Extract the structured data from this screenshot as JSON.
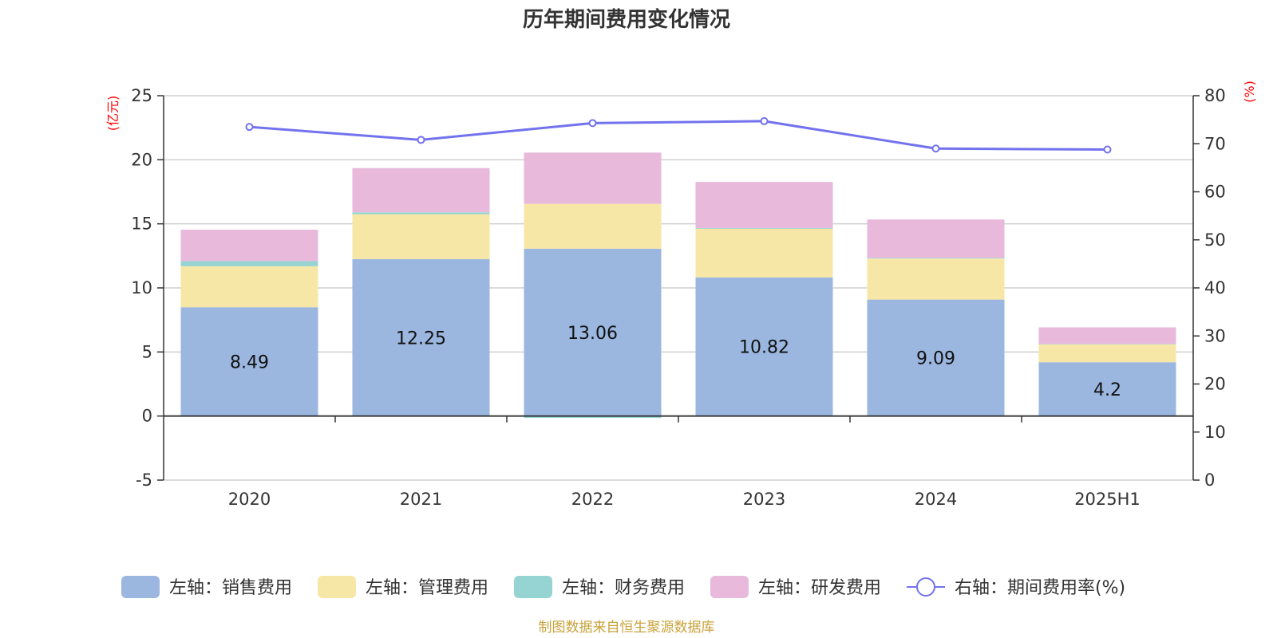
{
  "chart_data": {
    "type": "bar",
    "title": "历年期间费用变化情况",
    "categories": [
      "2020",
      "2021",
      "2022",
      "2023",
      "2024",
      "2025H1"
    ],
    "left_axis": {
      "unit": "(亿元)",
      "ylim": [
        -5,
        25
      ],
      "ticks": [
        -5,
        0,
        5,
        10,
        15,
        20,
        25
      ]
    },
    "right_axis": {
      "unit": "(%)",
      "ylim": [
        0,
        80
      ],
      "ticks": [
        0,
        10,
        20,
        30,
        40,
        50,
        60,
        70,
        80
      ]
    },
    "series": [
      {
        "name": "左轴：销售费用",
        "type": "bar",
        "stack": true,
        "color": "#9bb7e0",
        "values": [
          8.49,
          12.25,
          13.06,
          10.82,
          9.09,
          4.2
        ],
        "data_labels": [
          "8.49",
          "12.25",
          "13.06",
          "10.82",
          "9.09",
          "4.2"
        ]
      },
      {
        "name": "左轴：管理费用",
        "type": "bar",
        "stack": true,
        "color": "#f7e7a6",
        "values": [
          3.2,
          3.5,
          3.5,
          3.8,
          3.2,
          1.4
        ]
      },
      {
        "name": "左轴：财务费用",
        "type": "bar",
        "stack": true,
        "color": "#96d4d4",
        "values": [
          0.4,
          0.15,
          -0.15,
          0.05,
          0.05,
          0.02
        ]
      },
      {
        "name": "左轴：研发费用",
        "type": "bar",
        "stack": true,
        "color": "#e8b9da",
        "values": [
          2.45,
          3.45,
          4.0,
          3.6,
          3.0,
          1.3
        ]
      },
      {
        "name": "右轴：期间费用率(%)",
        "type": "line",
        "axis": "right",
        "color": "#7272ee",
        "values": [
          73.5,
          70.8,
          74.3,
          74.7,
          69.0,
          68.8
        ]
      }
    ],
    "legend_position": "bottom"
  },
  "source": "制图数据来自恒生聚源数据库"
}
